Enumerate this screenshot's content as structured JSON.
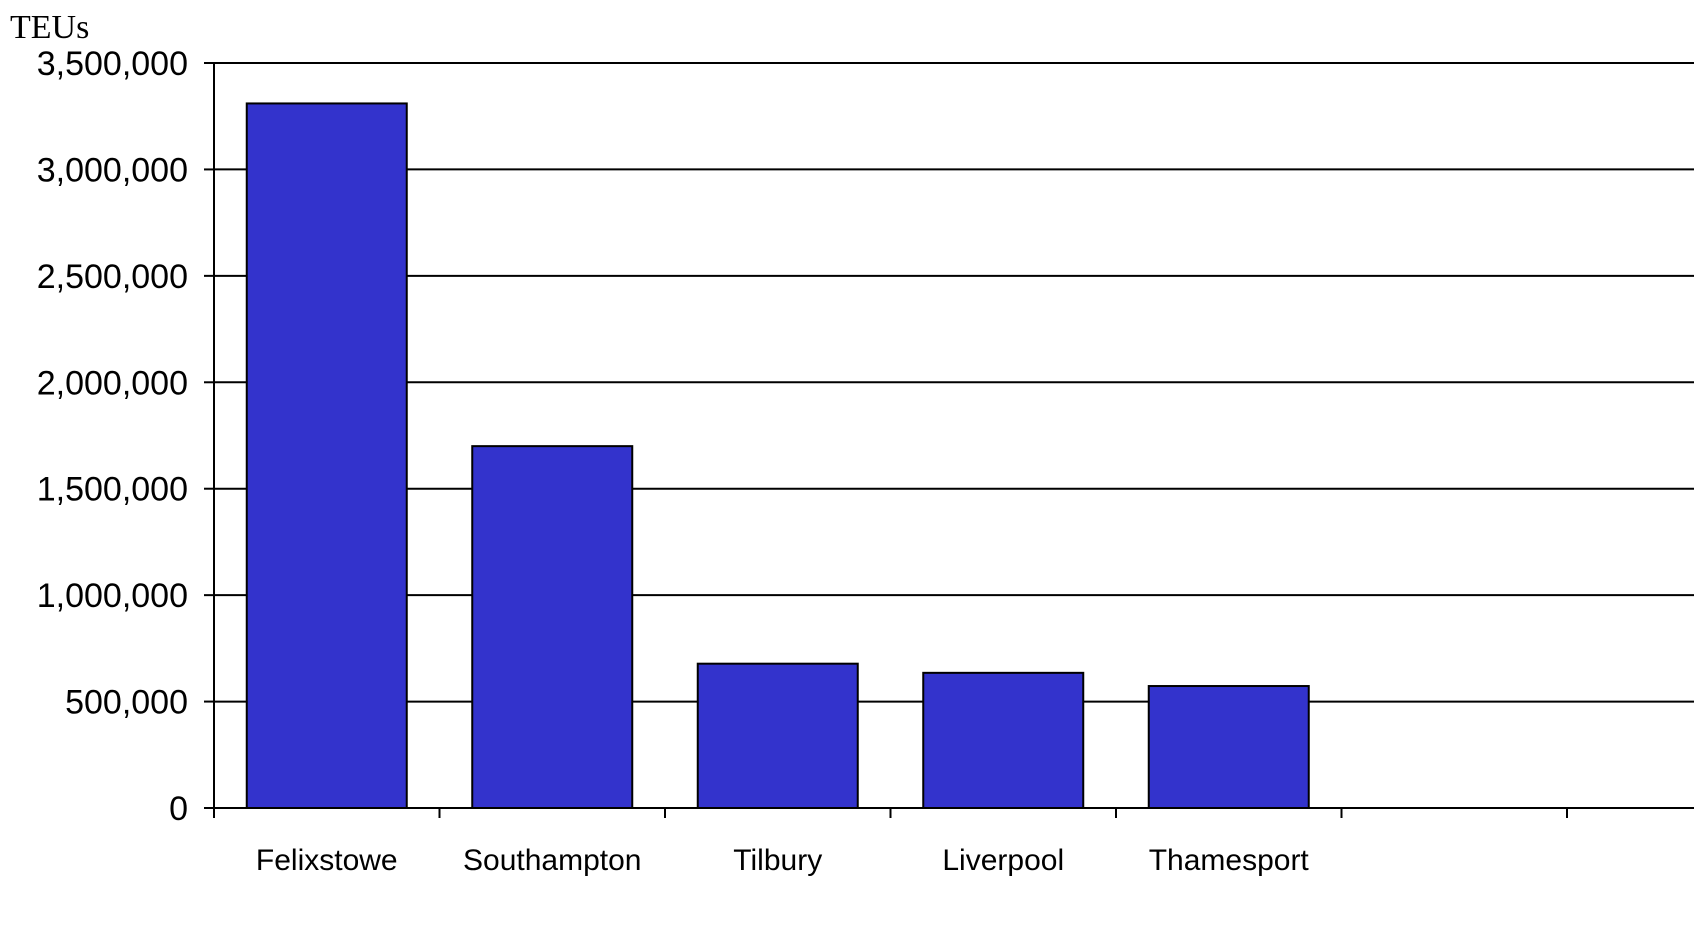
{
  "chart_data": {
    "type": "bar",
    "title": "",
    "xlabel": "",
    "ylabel": "TEUs",
    "categories": [
      "Felixstowe",
      "Southampton",
      "Tilbury",
      "Liverpool",
      "Thamesport",
      ""
    ],
    "values": [
      3310000,
      1700000,
      678000,
      635000,
      573000,
      null
    ],
    "ylim": [
      0,
      3500000
    ],
    "yticks": [
      0,
      500000,
      1000000,
      1500000,
      2000000,
      2500000,
      3000000,
      3500000
    ],
    "ytick_labels": [
      "0",
      "500,000",
      "1,000,000",
      "1,500,000",
      "2,000,000",
      "2,500,000",
      "3,000,000",
      "3,500,000"
    ],
    "grid": true,
    "legend": "none",
    "bar_color": "#3333cc",
    "bar_edge_color": "#000000"
  }
}
